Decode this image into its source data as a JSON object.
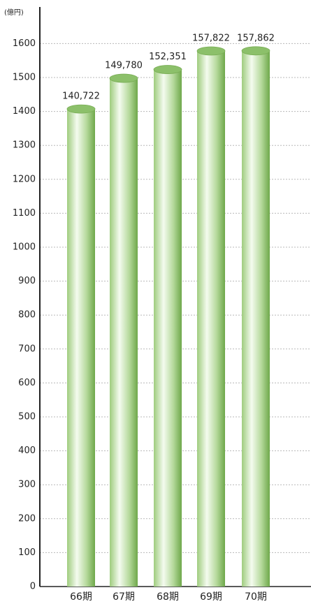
{
  "chart_data": {
    "type": "bar",
    "unit_label": "(億円)",
    "categories": [
      "66期",
      "67期",
      "68期",
      "69期",
      "70期"
    ],
    "values": [
      1407.22,
      1497.8,
      1523.51,
      1578.22,
      1578.62
    ],
    "value_labels": [
      "140,722",
      "149,780",
      "152,351",
      "157,822",
      "157,862"
    ],
    "color": "#8cc06a",
    "ylim": [
      0,
      1700
    ],
    "yticks": [
      0,
      100,
      200,
      300,
      400,
      500,
      600,
      700,
      800,
      900,
      1000,
      1100,
      1200,
      1300,
      1400,
      1500,
      1600
    ],
    "grid": true
  }
}
